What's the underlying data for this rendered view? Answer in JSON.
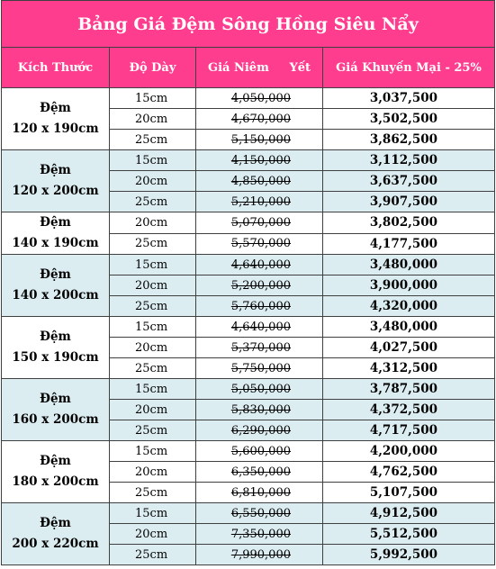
{
  "title": "Bảng Giá Đệm Sông Hồng Siêu Nẩy",
  "headers": {
    "size": "Kích Thước",
    "thickness": "Độ Dày",
    "list_price": "Giá Niêm     Yết",
    "promo_price": "Giá Khuyến Mại - 25%"
  },
  "colors": {
    "header_bg": "#ff3d8e",
    "shade_bg": "#dcedf2"
  },
  "groups": [
    {
      "label_line1": "Đệm",
      "label_line2": "120 x 190cm",
      "rows": [
        {
          "thickness": "15cm",
          "list": "4,050,000",
          "promo": "3,037,500"
        },
        {
          "thickness": "20cm",
          "list": "4,670,000",
          "promo": "3,502,500"
        },
        {
          "thickness": "25cm",
          "list": "5,150,000",
          "promo": "3,862,500"
        }
      ]
    },
    {
      "label_line1": "Đệm",
      "label_line2": "120 x 200cm",
      "rows": [
        {
          "thickness": "15cm",
          "list": "4,150,000",
          "promo": "3,112,500"
        },
        {
          "thickness": "20cm",
          "list": "4,850,000",
          "promo": "3,637,500"
        },
        {
          "thickness": "25cm",
          "list": "5,210,000",
          "promo": "3,907,500"
        }
      ]
    },
    {
      "label_line1": "Đệm",
      "label_line2": "140 x 190cm",
      "rows": [
        {
          "thickness": "20cm",
          "list": "5,070,000",
          "promo": "3,802,500"
        },
        {
          "thickness": "25cm",
          "list": "5,570,000",
          "promo": "4,177,500"
        }
      ]
    },
    {
      "label_line1": "Đệm",
      "label_line2": "140 x 200cm",
      "rows": [
        {
          "thickness": "15cm",
          "list": "4,640,000",
          "promo": "3,480,000"
        },
        {
          "thickness": "20cm",
          "list": "5,200,000",
          "promo": "3,900,000"
        },
        {
          "thickness": "25cm",
          "list": "5,760,000",
          "promo": "4,320,000"
        }
      ]
    },
    {
      "label_line1": "Đệm",
      "label_line2": "150 x 190cm",
      "rows": [
        {
          "thickness": "15cm",
          "list": "4,640,000",
          "promo": "3,480,000"
        },
        {
          "thickness": "20cm",
          "list": "5,370,000",
          "promo": "4,027,500"
        },
        {
          "thickness": "25cm",
          "list": "5,750,000",
          "promo": "4,312,500"
        }
      ]
    },
    {
      "label_line1": "Đệm",
      "label_line2": "160 x 200cm",
      "rows": [
        {
          "thickness": "15cm",
          "list": "5,050,000",
          "promo": "3,787,500"
        },
        {
          "thickness": "20cm",
          "list": "5,830,000",
          "promo": "4,372,500"
        },
        {
          "thickness": "25cm",
          "list": "6,290,000",
          "promo": "4,717,500"
        }
      ]
    },
    {
      "label_line1": "Đệm",
      "label_line2": "180 x 200cm",
      "rows": [
        {
          "thickness": "15cm",
          "list": "5,600,000",
          "promo": "4,200,000"
        },
        {
          "thickness": "20cm",
          "list": "6,350,000",
          "promo": "4,762,500"
        },
        {
          "thickness": "25cm",
          "list": "6,810,000",
          "promo": "5,107,500"
        }
      ]
    },
    {
      "label_line1": "Đệm",
      "label_line2": "200 x 220cm",
      "rows": [
        {
          "thickness": "15cm",
          "list": "6,550,000",
          "promo": "4,912,500"
        },
        {
          "thickness": "20cm",
          "list": "7,350,000",
          "promo": "5,512,500"
        },
        {
          "thickness": "25cm",
          "list": "7,990,000",
          "promo": "5,992,500"
        }
      ]
    }
  ]
}
